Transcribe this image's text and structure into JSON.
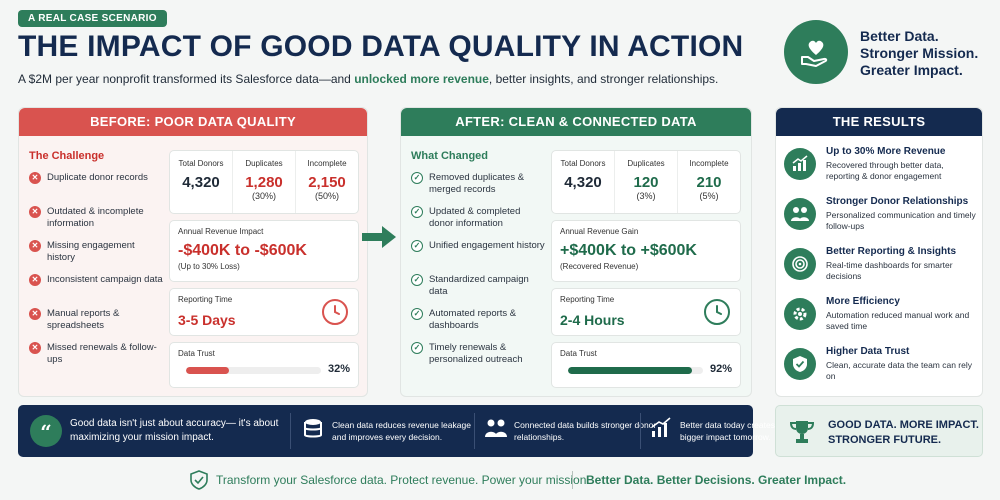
{
  "header": {
    "tag": "A REAL CASE SCENARIO",
    "title": "THE IMPACT OF GOOD DATA QUALITY IN ACTION",
    "subtitle_pre": "A $2M per year nonprofit transformed its Salesforce data—and ",
    "subtitle_highlight": "unlocked more revenue",
    "subtitle_post": ", better insights, and stronger relationships.",
    "brand_line1": "Better Data.",
    "brand_line2": "Stronger Mission.",
    "brand_line3": "Greater Impact."
  },
  "before": {
    "header": "BEFORE: POOR DATA QUALITY",
    "section_title": "The Challenge",
    "items": [
      "Duplicate donor records",
      "Outdated & incomplete information",
      "Missing engagement history",
      "Inconsistent campaign data",
      "Manual reports & spreadsheets",
      "Missed renewals & follow-ups"
    ],
    "stats": [
      {
        "label": "Total Donors",
        "value": "4,320",
        "sub": ""
      },
      {
        "label": "Duplicates",
        "value": "1,280",
        "sub": "(30%)"
      },
      {
        "label": "Incomplete",
        "value": "2,150",
        "sub": "(50%)"
      }
    ],
    "revenue_label": "Annual Revenue Impact",
    "revenue_value": "-$400K to -$600K",
    "revenue_sub": "(Up to 30% Loss)",
    "reporting_label": "Reporting Time",
    "reporting_value": "3-5 Days",
    "trust_label": "Data Trust",
    "trust_value": "32%",
    "trust_fraction": 0.32
  },
  "after": {
    "header": "AFTER: CLEAN & CONNECTED DATA",
    "section_title": "What Changed",
    "items": [
      "Removed duplicates & merged records",
      "Updated & completed donor information",
      "Unified engagement history",
      "Standardized campaign data",
      "Automated reports & dashboards",
      "Timely renewals & personalized outreach"
    ],
    "stats": [
      {
        "label": "Total Donors",
        "value": "4,320",
        "sub": ""
      },
      {
        "label": "Duplicates",
        "value": "120",
        "sub": "(3%)"
      },
      {
        "label": "Incomplete",
        "value": "210",
        "sub": "(5%)"
      }
    ],
    "revenue_label": "Annual Revenue Gain",
    "revenue_value": "+$400K to +$600K",
    "revenue_sub": "(Recovered Revenue)",
    "reporting_label": "Reporting Time",
    "reporting_value": "2-4 Hours",
    "trust_label": "Data Trust",
    "trust_value": "92%",
    "trust_fraction": 0.92
  },
  "results": {
    "header": "THE RESULTS",
    "items": [
      {
        "title": "Up to 30% More Revenue",
        "desc": "Recovered through better data, reporting & donor engagement",
        "icon": "chart-growth-icon"
      },
      {
        "title": "Stronger Donor Relationships",
        "desc": "Personalized communication and timely follow-ups",
        "icon": "people-icon"
      },
      {
        "title": "Better Reporting & Insights",
        "desc": "Real-time dashboards for smarter decisions",
        "icon": "target-icon"
      },
      {
        "title": "More Efficiency",
        "desc": "Automation reduced manual work and saved time",
        "icon": "gear-icon"
      },
      {
        "title": "Higher Data Trust",
        "desc": "Clean, accurate data the team can rely on",
        "icon": "shield-check-icon"
      }
    ]
  },
  "banner": {
    "main": "Good data isn't just about accuracy— it's about maximizing your mission impact.",
    "item1": "Clean data reduces revenue leakage and improves every decision.",
    "item2": "Connected data builds stronger donor relationships.",
    "item3": "Better data today creates a bigger impact tomorrow."
  },
  "impact": {
    "line1": "GOOD DATA. MORE IMPACT.",
    "line2": "STRONGER FUTURE."
  },
  "footer": {
    "left": "Transform your Salesforce data. Protect revenue. Power your mission.",
    "right": "Better Data. Better Decisions. Greater Impact."
  },
  "colors": {
    "green": "#2e7d5b",
    "red": "#d9534f",
    "navy": "#142a4f"
  }
}
